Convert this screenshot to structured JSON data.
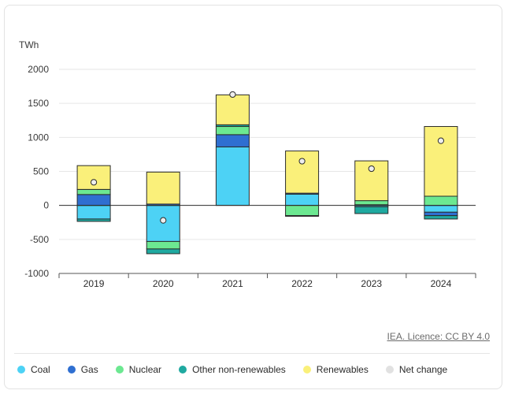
{
  "unit_label": "TWh",
  "source": "IEA. Licence: CC BY 4.0",
  "colors": {
    "Coal": "#4dd2f5",
    "Gas": "#2f6fd1",
    "Nuclear": "#6ce891",
    "Other non-renewables": "#1fa9a0",
    "Renewables": "#faf07a",
    "Net change": "#e1e1e1"
  },
  "chart_data": {
    "type": "bar",
    "stacked": true,
    "categories": [
      "2019",
      "2020",
      "2021",
      "2022",
      "2023",
      "2024"
    ],
    "series": [
      {
        "name": "Coal",
        "values": [
          -200,
          -530,
          860,
          165,
          -20,
          -100
        ]
      },
      {
        "name": "Gas",
        "values": [
          160,
          20,
          180,
          15,
          10,
          -50
        ]
      },
      {
        "name": "Nuclear",
        "values": [
          75,
          -110,
          120,
          -150,
          60,
          135
        ]
      },
      {
        "name": "Other non-renewables",
        "values": [
          -35,
          -70,
          25,
          -10,
          -100,
          -50
        ]
      },
      {
        "name": "Renewables",
        "values": [
          350,
          470,
          440,
          620,
          585,
          1025
        ]
      }
    ],
    "net_change": {
      "name": "Net change",
      "values": [
        340,
        -220,
        1630,
        650,
        540,
        950
      ]
    },
    "yticks": [
      2000,
      1500,
      1000,
      500,
      0,
      -500,
      -1000
    ],
    "ylim": [
      -1000,
      2000
    ],
    "grid": true,
    "legend_position": "bottom-left",
    "ylabel": "TWh"
  },
  "legend": [
    {
      "label": "Coal",
      "icon": "coal-dot-icon"
    },
    {
      "label": "Gas",
      "icon": "gas-dot-icon"
    },
    {
      "label": "Nuclear",
      "icon": "nuclear-dot-icon"
    },
    {
      "label": "Other non-renewables",
      "icon": "other-dot-icon"
    },
    {
      "label": "Renewables",
      "icon": "renewables-dot-icon"
    },
    {
      "label": "Net change",
      "icon": "net-change-dot-icon"
    }
  ]
}
